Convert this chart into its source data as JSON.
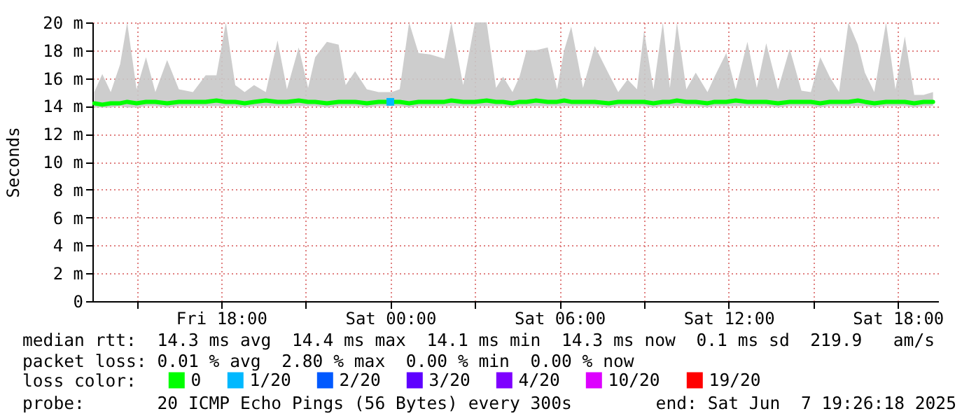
{
  "chart_data": {
    "type": "line",
    "ylabel": "Seconds",
    "legend_title": "loss color:",
    "legend": "bottom",
    "grid": true,
    "xlim": [
      "2025-06-06T13:26",
      "2025-06-07T19:26"
    ],
    "xticks": [
      {
        "value": "2025-06-06T15:00",
        "label": null
      },
      {
        "value": "2025-06-06T18:00",
        "label": "Fri 18:00"
      },
      {
        "value": "2025-06-06T21:00",
        "label": null
      },
      {
        "value": "2025-06-07T00:00",
        "label": "Sat 00:00"
      },
      {
        "value": "2025-06-07T03:00",
        "label": null
      },
      {
        "value": "2025-06-07T06:00",
        "label": "Sat 06:00"
      },
      {
        "value": "2025-06-07T09:00",
        "label": null
      },
      {
        "value": "2025-06-07T12:00",
        "label": "Sat 12:00"
      },
      {
        "value": "2025-06-07T15:00",
        "label": null
      },
      {
        "value": "2025-06-07T18:00",
        "label": "Sat 18:00"
      }
    ],
    "ylim": [
      0,
      20
    ],
    "yticks": [
      0,
      {
        "value": 2,
        "label": "2 m"
      },
      {
        "value": 4,
        "label": "4 m"
      },
      {
        "value": 6,
        "label": "6 m"
      },
      {
        "value": 8,
        "label": "8 m"
      },
      {
        "value": 10,
        "label": "10 m"
      },
      {
        "value": 12,
        "label": "12 m"
      },
      {
        "value": 14,
        "label": "14 m"
      },
      {
        "value": 16,
        "label": "16 m"
      },
      {
        "value": 18,
        "label": "18 m"
      },
      {
        "value": 20,
        "label": "20 m"
      }
    ],
    "x": [
      "2025-06-06T13:30",
      "2025-06-06T13:47",
      "2025-06-06T14:05",
      "2025-06-06T14:25",
      "2025-06-06T14:40",
      "2025-06-06T15:00",
      "2025-06-06T15:20",
      "2025-06-06T15:40",
      "2025-06-06T16:05",
      "2025-06-06T16:30",
      "2025-06-06T17:00",
      "2025-06-06T17:27",
      "2025-06-06T17:50",
      "2025-06-06T18:10",
      "2025-06-06T18:30",
      "2025-06-06T18:50",
      "2025-06-06T19:10",
      "2025-06-06T19:35",
      "2025-06-06T20:00",
      "2025-06-06T20:20",
      "2025-06-06T20:45",
      "2025-06-06T21:05",
      "2025-06-06T21:20",
      "2025-06-06T21:45",
      "2025-06-06T22:10",
      "2025-06-06T22:25",
      "2025-06-06T22:45",
      "2025-06-06T23:10",
      "2025-06-06T23:35",
      "2025-06-07T00:03",
      "2025-06-07T00:20",
      "2025-06-07T00:40",
      "2025-06-07T01:00",
      "2025-06-07T01:25",
      "2025-06-07T01:55",
      "2025-06-07T02:10",
      "2025-06-07T02:35",
      "2025-06-07T03:00",
      "2025-06-07T03:25",
      "2025-06-07T03:45",
      "2025-06-07T04:00",
      "2025-06-07T04:20",
      "2025-06-07T04:35",
      "2025-06-07T04:50",
      "2025-06-07T05:10",
      "2025-06-07T05:35",
      "2025-06-07T05:55",
      "2025-06-07T06:10",
      "2025-06-07T06:25",
      "2025-06-07T06:50",
      "2025-06-07T07:15",
      "2025-06-07T07:45",
      "2025-06-07T08:05",
      "2025-06-07T08:25",
      "2025-06-07T08:45",
      "2025-06-07T09:00",
      "2025-06-07T09:20",
      "2025-06-07T09:40",
      "2025-06-07T09:55",
      "2025-06-07T10:10",
      "2025-06-07T10:30",
      "2025-06-07T10:50",
      "2025-06-07T11:15",
      "2025-06-07T11:30",
      "2025-06-07T11:55",
      "2025-06-07T12:15",
      "2025-06-07T12:40",
      "2025-06-07T13:00",
      "2025-06-07T13:20",
      "2025-06-07T13:45",
      "2025-06-07T14:10",
      "2025-06-07T14:35",
      "2025-06-07T14:55",
      "2025-06-07T15:15",
      "2025-06-07T15:35",
      "2025-06-07T15:55",
      "2025-06-07T16:15",
      "2025-06-07T16:35",
      "2025-06-07T16:50",
      "2025-06-07T17:10",
      "2025-06-07T17:35",
      "2025-06-07T17:55",
      "2025-06-07T18:15",
      "2025-06-07T18:35",
      "2025-06-07T18:55",
      "2025-06-07T19:15"
    ],
    "series": [
      {
        "name": "0",
        "color": "#00ff00",
        "values": [
          14.2,
          14.1,
          14.2,
          14.2,
          14.3,
          14.2,
          14.3,
          14.3,
          14.2,
          14.3,
          14.3,
          14.3,
          14.4,
          14.3,
          14.3,
          14.2,
          14.3,
          14.4,
          14.3,
          14.3,
          14.4,
          14.3,
          14.3,
          14.2,
          14.3,
          14.3,
          14.3,
          14.2,
          14.3,
          14.3,
          14.3,
          14.2,
          14.3,
          14.3,
          14.3,
          14.4,
          14.3,
          14.3,
          14.4,
          14.3,
          14.3,
          14.2,
          14.3,
          14.3,
          14.4,
          14.3,
          14.3,
          14.4,
          14.3,
          14.3,
          14.3,
          14.2,
          14.3,
          14.3,
          14.3,
          14.3,
          14.2,
          14.3,
          14.3,
          14.4,
          14.3,
          14.3,
          14.2,
          14.3,
          14.3,
          14.4,
          14.3,
          14.3,
          14.3,
          14.2,
          14.3,
          14.3,
          14.3,
          14.2,
          14.3,
          14.3,
          14.3,
          14.4,
          14.3,
          14.2,
          14.3,
          14.3,
          14.3,
          14.2,
          14.3,
          14.3
        ],
        "lower": [
          13.9,
          13.9,
          13.9,
          14.0,
          13.9,
          13.9,
          14.0,
          14.0,
          13.9,
          14.0,
          14.0,
          14.0,
          14.0,
          14.0,
          14.0,
          13.9,
          14.0,
          14.0,
          14.0,
          14.0,
          14.0,
          14.0,
          14.0,
          13.9,
          14.0,
          14.0,
          14.0,
          13.9,
          14.0,
          14.0,
          14.0,
          13.9,
          14.0,
          14.0,
          14.0,
          14.0,
          14.0,
          14.0,
          14.0,
          14.0,
          14.0,
          13.9,
          14.0,
          14.0,
          14.0,
          14.0,
          14.0,
          14.0,
          14.0,
          14.0,
          14.0,
          13.9,
          14.0,
          14.0,
          14.0,
          14.0,
          13.9,
          14.0,
          14.0,
          14.0,
          14.0,
          14.0,
          13.9,
          14.0,
          14.0,
          14.0,
          14.0,
          14.0,
          14.0,
          13.9,
          14.0,
          14.0,
          14.0,
          13.9,
          14.0,
          14.0,
          14.0,
          14.0,
          14.0,
          13.9,
          14.0,
          14.0,
          14.0,
          13.9,
          14.0,
          14.0
        ],
        "upper": [
          15.0,
          16.3,
          15.0,
          17.0,
          20.0,
          15.2,
          17.5,
          15.0,
          17.3,
          15.2,
          15.0,
          16.2,
          16.2,
          20.0,
          15.5,
          15.0,
          15.5,
          15.0,
          18.7,
          15.2,
          18.2,
          15.3,
          17.5,
          18.6,
          18.4,
          15.5,
          16.5,
          15.2,
          15.0,
          15.0,
          15.2,
          20.0,
          17.8,
          17.7,
          17.4,
          20.0,
          15.5,
          20.0,
          20.0,
          15.3,
          16.1,
          15.0,
          16.1,
          18.0,
          18.0,
          18.2,
          15.2,
          18.0,
          19.7,
          15.3,
          18.3,
          16.3,
          15.0,
          15.9,
          15.2,
          19.4,
          15.2,
          20.0,
          15.3,
          20.0,
          15.2,
          16.4,
          15.0,
          16.1,
          17.8,
          15.2,
          18.6,
          15.3,
          18.5,
          15.2,
          18.1,
          15.1,
          15.0,
          17.5,
          16.1,
          15.0,
          20.0,
          18.4,
          16.4,
          15.0,
          20.0,
          15.2,
          19.0,
          14.8,
          14.8,
          15.0
        ]
      },
      {
        "name": "1/20",
        "color": "#00b8ff",
        "type": "scatter",
        "marker": "square",
        "x": [
          "2025-06-07T00:00"
        ],
        "values": [
          14.3
        ]
      },
      {
        "name": "2/20",
        "color": "#0059ff",
        "values": [
          null,
          null,
          null,
          null,
          null,
          null,
          null,
          null,
          null,
          null,
          null,
          null,
          null,
          null,
          null,
          null,
          null,
          null,
          null,
          null,
          null,
          null,
          null,
          null,
          null,
          null,
          null,
          null,
          null,
          null,
          null,
          null,
          null,
          null,
          null,
          null,
          null,
          null,
          null,
          null,
          null,
          null,
          null,
          null,
          null,
          null,
          null,
          null,
          null,
          null,
          null,
          null,
          null,
          null,
          null,
          null,
          null,
          null,
          null,
          null,
          null,
          null,
          null,
          null,
          null,
          null,
          null,
          null,
          null,
          null,
          null,
          null,
          null,
          null,
          null,
          null,
          null,
          null,
          null,
          null,
          null,
          null,
          null,
          null,
          null,
          null
        ]
      },
      {
        "name": "3/20",
        "color": "#5e00ff",
        "values": [
          null,
          null,
          null,
          null,
          null,
          null,
          null,
          null,
          null,
          null,
          null,
          null,
          null,
          null,
          null,
          null,
          null,
          null,
          null,
          null,
          null,
          null,
          null,
          null,
          null,
          null,
          null,
          null,
          null,
          null,
          null,
          null,
          null,
          null,
          null,
          null,
          null,
          null,
          null,
          null,
          null,
          null,
          null,
          null,
          null,
          null,
          null,
          null,
          null,
          null,
          null,
          null,
          null,
          null,
          null,
          null,
          null,
          null,
          null,
          null,
          null,
          null,
          null,
          null,
          null,
          null,
          null,
          null,
          null,
          null,
          null,
          null,
          null,
          null,
          null,
          null,
          null,
          null,
          null,
          null,
          null,
          null,
          null,
          null,
          null,
          null
        ]
      },
      {
        "name": "4/20",
        "color": "#7e00ff",
        "values": [
          null,
          null,
          null,
          null,
          null,
          null,
          null,
          null,
          null,
          null,
          null,
          null,
          null,
          null,
          null,
          null,
          null,
          null,
          null,
          null,
          null,
          null,
          null,
          null,
          null,
          null,
          null,
          null,
          null,
          null,
          null,
          null,
          null,
          null,
          null,
          null,
          null,
          null,
          null,
          null,
          null,
          null,
          null,
          null,
          null,
          null,
          null,
          null,
          null,
          null,
          null,
          null,
          null,
          null,
          null,
          null,
          null,
          null,
          null,
          null,
          null,
          null,
          null,
          null,
          null,
          null,
          null,
          null,
          null,
          null,
          null,
          null,
          null,
          null,
          null,
          null,
          null,
          null,
          null,
          null,
          null,
          null,
          null,
          null,
          null,
          null
        ]
      },
      {
        "name": "10/20",
        "color": "#dd00ff",
        "values": [
          null,
          null,
          null,
          null,
          null,
          null,
          null,
          null,
          null,
          null,
          null,
          null,
          null,
          null,
          null,
          null,
          null,
          null,
          null,
          null,
          null,
          null,
          null,
          null,
          null,
          null,
          null,
          null,
          null,
          null,
          null,
          null,
          null,
          null,
          null,
          null,
          null,
          null,
          null,
          null,
          null,
          null,
          null,
          null,
          null,
          null,
          null,
          null,
          null,
          null,
          null,
          null,
          null,
          null,
          null,
          null,
          null,
          null,
          null,
          null,
          null,
          null,
          null,
          null,
          null,
          null,
          null,
          null,
          null,
          null,
          null,
          null,
          null,
          null,
          null,
          null,
          null,
          null,
          null,
          null,
          null,
          null,
          null,
          null,
          null,
          null
        ]
      },
      {
        "name": "19/20",
        "color": "#ff0000",
        "values": [
          null,
          null,
          null,
          null,
          null,
          null,
          null,
          null,
          null,
          null,
          null,
          null,
          null,
          null,
          null,
          null,
          null,
          null,
          null,
          null,
          null,
          null,
          null,
          null,
          null,
          null,
          null,
          null,
          null,
          null,
          null,
          null,
          null,
          null,
          null,
          null,
          null,
          null,
          null,
          null,
          null,
          null,
          null,
          null,
          null,
          null,
          null,
          null,
          null,
          null,
          null,
          null,
          null,
          null,
          null,
          null,
          null,
          null,
          null,
          null,
          null,
          null,
          null,
          null,
          null,
          null,
          null,
          null,
          null,
          null,
          null,
          null,
          null,
          null,
          null,
          null,
          null,
          null,
          null,
          null,
          null,
          null,
          null,
          null,
          null,
          null
        ]
      }
    ],
    "annotations": [
      "median rtt:  14.3 ms avg  14.4 ms max  14.1 ms min  14.3 ms now  0.1 ms sd  219.9   am/s",
      "packet loss: 0.01 % avg  2.80 % max  0.00 % min  0.00 % now",
      "probe:       20 ICMP Echo Pings (56 Bytes) every 300s",
      "end: Sat Jun  7 19:26:18 2025"
    ]
  }
}
